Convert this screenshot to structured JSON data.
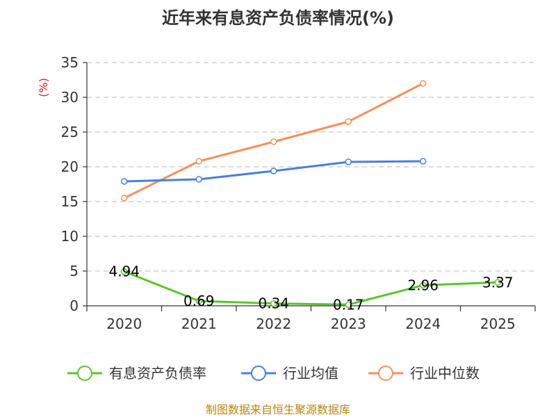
{
  "chart_data": {
    "type": "line",
    "title": "近年来有息资产负债率情况(%)",
    "ylabel": "(%)",
    "xlabel": "",
    "categories": [
      "2020",
      "2021",
      "2022",
      "2023",
      "2024",
      "2025"
    ],
    "y_ticks": [
      "0",
      "5",
      "10",
      "15",
      "20",
      "25",
      "30",
      "35"
    ],
    "ylim": [
      0,
      35
    ],
    "grid": true,
    "legend_position": "bottom",
    "series": [
      {
        "name": "有息资产负债率",
        "color": "#5cc42b",
        "values": [
          4.94,
          0.69,
          0.34,
          0.17,
          2.96,
          3.37
        ],
        "labels": [
          "4.94",
          "0.69",
          "0.34",
          "0.17",
          "2.96",
          "3.37"
        ]
      },
      {
        "name": "行业均值",
        "color": "#4a7fdb",
        "values": [
          17.9,
          18.2,
          19.4,
          20.7,
          20.8,
          null
        ]
      },
      {
        "name": "行业中位数",
        "color": "#f5905a",
        "values": [
          15.5,
          20.8,
          23.6,
          26.5,
          32.0,
          null
        ]
      }
    ]
  },
  "source": "制图数据来自恒生聚源数据库"
}
